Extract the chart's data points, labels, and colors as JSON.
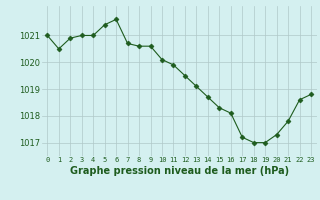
{
  "x": [
    0,
    1,
    2,
    3,
    4,
    5,
    6,
    7,
    8,
    9,
    10,
    11,
    12,
    13,
    14,
    15,
    16,
    17,
    18,
    19,
    20,
    21,
    22,
    23
  ],
  "y": [
    1021.0,
    1020.5,
    1020.9,
    1021.0,
    1021.0,
    1021.4,
    1021.6,
    1020.7,
    1020.6,
    1020.6,
    1020.1,
    1019.9,
    1019.5,
    1019.1,
    1018.7,
    1018.3,
    1018.1,
    1017.2,
    1017.0,
    1017.0,
    1017.3,
    1017.8,
    1018.6,
    1018.8
  ],
  "line_color": "#1e5c1e",
  "marker": "D",
  "marker_size": 2.5,
  "background_color": "#d4f0f0",
  "grid_color": "#b0c8c8",
  "xlabel": "Graphe pression niveau de la mer (hPa)",
  "xlabel_fontsize": 7,
  "xlabel_color": "#1e5c1e",
  "ylim": [
    1016.5,
    1022.1
  ],
  "yticks": [
    1017,
    1018,
    1019,
    1020,
    1021
  ],
  "xtick_fontsize": 5,
  "ytick_fontsize": 6,
  "tick_color": "#1e5c1e"
}
